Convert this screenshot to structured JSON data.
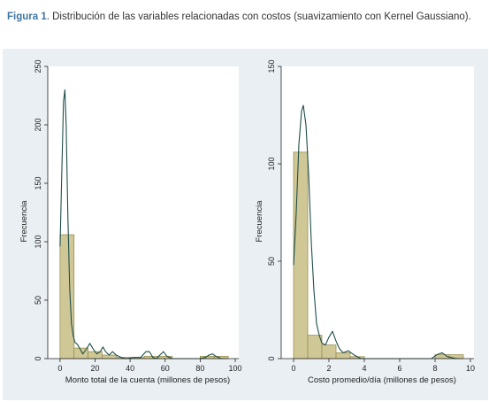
{
  "caption": {
    "figure_label": "Figura 1",
    "text": ". Distribución de las variables relacionadas con costos (suavizamiento con Kernel Gaussiano)."
  },
  "colors": {
    "panel_background": "#e9eff3",
    "bar_fill": "#cfc896",
    "bar_stroke": "#9a9152",
    "kernel_line": "#1f4e4a"
  },
  "chart_data": [
    {
      "type": "bar",
      "subtype": "histogram_with_kernel_density",
      "xlabel": "Monto total de la cuenta (millones de pesos)",
      "ylabel": "Frecuencia",
      "xlim": [
        -7,
        102
      ],
      "ylim": [
        0,
        250
      ],
      "xticks": [
        0,
        20,
        40,
        60,
        80,
        100
      ],
      "yticks": [
        0,
        50,
        100,
        150,
        200,
        250
      ],
      "grid": false,
      "bins": [
        {
          "x0": 0,
          "x1": 8,
          "value": 106
        },
        {
          "x0": 8,
          "x1": 16,
          "value": 9
        },
        {
          "x0": 16,
          "x1": 24,
          "value": 6
        },
        {
          "x0": 24,
          "x1": 32,
          "value": 3
        },
        {
          "x0": 32,
          "x1": 40,
          "value": 1
        },
        {
          "x0": 40,
          "x1": 48,
          "value": 1
        },
        {
          "x0": 48,
          "x1": 56,
          "value": 2
        },
        {
          "x0": 56,
          "x1": 64,
          "value": 2
        },
        {
          "x0": 64,
          "x1": 72,
          "value": 0
        },
        {
          "x0": 72,
          "x1": 80,
          "value": 0
        },
        {
          "x0": 80,
          "x1": 88,
          "value": 2
        },
        {
          "x0": 88,
          "x1": 96,
          "value": 2
        }
      ],
      "kernel_density": [
        [
          0,
          96
        ],
        [
          1,
          160
        ],
        [
          2,
          220
        ],
        [
          2.8,
          230
        ],
        [
          3.5,
          200
        ],
        [
          4.5,
          120
        ],
        [
          5.5,
          60
        ],
        [
          6.5,
          30
        ],
        [
          7.5,
          20
        ],
        [
          8.5,
          14
        ],
        [
          10,
          12
        ],
        [
          11.5,
          8
        ],
        [
          13,
          4
        ],
        [
          15,
          8
        ],
        [
          17,
          13
        ],
        [
          19,
          8
        ],
        [
          21,
          4
        ],
        [
          23,
          6
        ],
        [
          24.5,
          10
        ],
        [
          26,
          6
        ],
        [
          28,
          3
        ],
        [
          30,
          6
        ],
        [
          32,
          3
        ],
        [
          35,
          1
        ],
        [
          38,
          0
        ],
        [
          42,
          1
        ],
        [
          46,
          1
        ],
        [
          49,
          6
        ],
        [
          51,
          6
        ],
        [
          53,
          1
        ],
        [
          55,
          0
        ],
        [
          57,
          3
        ],
        [
          59,
          6
        ],
        [
          61,
          2
        ],
        [
          64,
          0
        ],
        [
          70,
          0
        ],
        [
          76,
          0
        ],
        [
          80,
          0
        ],
        [
          83,
          1
        ],
        [
          85,
          3
        ],
        [
          87,
          4
        ],
        [
          89,
          2
        ],
        [
          92,
          0
        ],
        [
          95,
          0
        ]
      ]
    },
    {
      "type": "bar",
      "subtype": "histogram_with_kernel_density",
      "xlabel": "Costo promedio/día (millones de pesos)",
      "ylabel": "Frecuencia",
      "xlim": [
        -0.7,
        10.2
      ],
      "ylim": [
        0,
        150
      ],
      "xticks": [
        0,
        2,
        4,
        6,
        8,
        10
      ],
      "yticks": [
        0,
        50,
        100,
        150
      ],
      "grid": false,
      "bins": [
        {
          "x0": 0,
          "x1": 0.8,
          "value": 106
        },
        {
          "x0": 0.8,
          "x1": 1.6,
          "value": 12
        },
        {
          "x0": 1.6,
          "x1": 2.4,
          "value": 7
        },
        {
          "x0": 2.4,
          "x1": 3.2,
          "value": 3
        },
        {
          "x0": 3.2,
          "x1": 4.0,
          "value": 1
        },
        {
          "x0": 8.0,
          "x1": 8.8,
          "value": 2
        },
        {
          "x0": 8.8,
          "x1": 9.6,
          "value": 2
        }
      ],
      "kernel_density": [
        [
          0,
          48
        ],
        [
          0.15,
          75
        ],
        [
          0.3,
          110
        ],
        [
          0.45,
          127
        ],
        [
          0.55,
          130
        ],
        [
          0.7,
          120
        ],
        [
          0.85,
          95
        ],
        [
          1.0,
          60
        ],
        [
          1.15,
          35
        ],
        [
          1.3,
          18
        ],
        [
          1.45,
          12
        ],
        [
          1.6,
          8
        ],
        [
          1.8,
          7
        ],
        [
          2.0,
          11
        ],
        [
          2.2,
          14
        ],
        [
          2.4,
          9
        ],
        [
          2.6,
          5
        ],
        [
          2.8,
          3
        ],
        [
          3.1,
          4
        ],
        [
          3.4,
          2
        ],
        [
          3.8,
          0
        ],
        [
          5,
          0
        ],
        [
          7,
          0
        ],
        [
          7.8,
          0
        ],
        [
          8.1,
          2
        ],
        [
          8.4,
          3
        ],
        [
          8.7,
          1
        ],
        [
          9.2,
          0
        ],
        [
          9.4,
          0
        ]
      ]
    }
  ]
}
